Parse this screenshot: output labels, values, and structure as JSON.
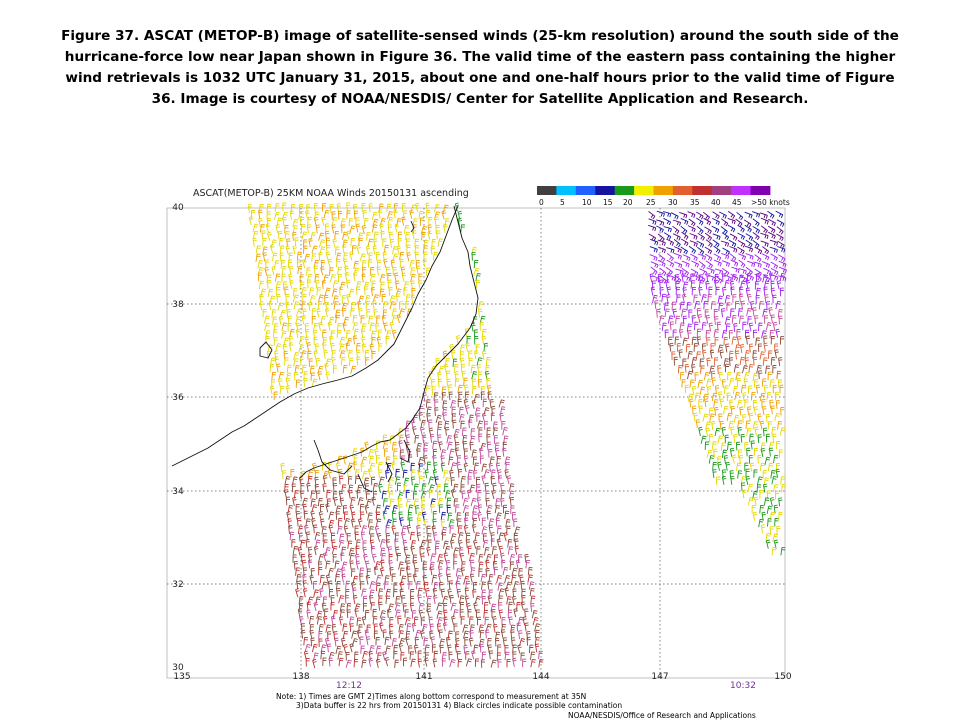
{
  "caption": "Figure 37.  ASCAT (METOP-B) image of satellite-sensed winds (25-km resolution) around the south side of the hurricane-force low near Japan shown in Figure 36.  The valid time of the eastern pass containing the higher wind retrievals is 1032 UTC January 31, 2015, about one and one-half hours prior to the valid time of Figure 36.  Image is courtesy of NOAA/NESDIS/ Center for Satellite Application  and Research.",
  "map": {
    "title": "ASCAT(METOP-B) 25KM NOAA Winds 20150131 ascending",
    "lat_labels": [
      "40",
      "38",
      "36",
      "34",
      "32",
      "30"
    ],
    "lon_labels": [
      "135",
      "138",
      "141",
      "144",
      "147",
      "150"
    ],
    "pass_times": {
      "west": "12:12",
      "east": "10:32"
    },
    "legend": {
      "labels": [
        "0",
        "5",
        "10",
        "15",
        "20",
        "25",
        "30",
        "35",
        "40",
        "45",
        ">50 knots"
      ],
      "colors": [
        "#404040",
        "#00c0ff",
        "#2060ff",
        "#1414a0",
        "#1a9a1a",
        "#f0f000",
        "#f0a000",
        "#e06030",
        "#c03030",
        "#a04080",
        "#c030ff",
        "#8000b0"
      ]
    },
    "note_line1": "Note: 1) Times are GMT 2)Times along bottom correspond to measurement at 35N",
    "note_line2": "3)Data buffer is 22 hrs from 20150131 4) Black circles indicate possible contamination",
    "credit": "NOAA/NESDIS/Office of Research and Applications"
  }
}
